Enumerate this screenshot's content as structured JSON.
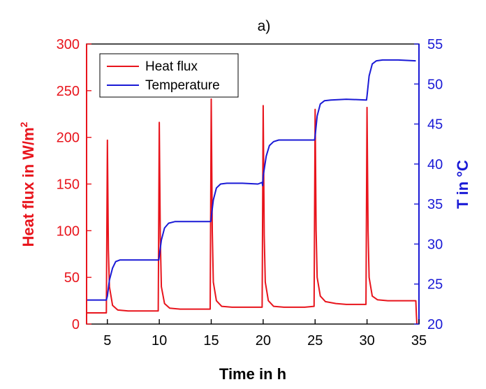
{
  "chart_data": {
    "type": "line",
    "title": "a)",
    "xlabel": "Time in h",
    "ylabel_left": "Heat flux in W/m",
    "ylabel_left_sup": "2",
    "ylabel_right": "T in °C",
    "xlim": [
      3,
      35
    ],
    "ylim_left": [
      0,
      300
    ],
    "ylim_right": [
      20,
      55
    ],
    "x_ticks": [
      5,
      10,
      15,
      20,
      25,
      30,
      35
    ],
    "y_left_ticks": [
      0,
      50,
      100,
      150,
      200,
      250,
      300
    ],
    "y_right_ticks": [
      20,
      25,
      30,
      35,
      40,
      45,
      50,
      55
    ],
    "legend_position": "top-left",
    "grid": false,
    "series": [
      {
        "name": "Heat flux",
        "axis": "left",
        "color": "#e8141c",
        "x": [
          3.0,
          4.9,
          5.0,
          5.1,
          5.2,
          5.5,
          6.0,
          7.0,
          8.0,
          9.0,
          9.9,
          10.0,
          10.1,
          10.2,
          10.5,
          11.0,
          12.0,
          13.0,
          14.0,
          14.9,
          15.0,
          15.1,
          15.2,
          15.5,
          16.0,
          17.0,
          18.0,
          19.0,
          19.9,
          20.0,
          20.1,
          20.2,
          20.5,
          21.0,
          22.0,
          23.0,
          24.0,
          24.9,
          25.0,
          25.1,
          25.2,
          25.5,
          26.0,
          27.0,
          28.0,
          29.0,
          29.9,
          30.0,
          30.1,
          30.2,
          30.5,
          31.0,
          32.0,
          33.0,
          34.0,
          34.7,
          34.75,
          34.8
        ],
        "y": [
          12,
          12,
          197,
          80,
          40,
          20,
          15,
          14,
          14,
          14,
          14,
          216,
          90,
          40,
          22,
          17,
          16,
          16,
          16,
          16,
          241,
          100,
          45,
          25,
          19,
          18,
          18,
          18,
          18,
          234,
          95,
          45,
          25,
          19,
          18,
          18,
          18,
          19,
          230,
          100,
          50,
          30,
          24,
          22,
          21,
          21,
          21,
          232,
          100,
          50,
          30,
          26,
          25,
          25,
          25,
          25,
          10,
          0
        ]
      },
      {
        "name": "Temperature",
        "axis": "right",
        "color": "#1a1ad6",
        "x": [
          3.0,
          4.9,
          5.0,
          5.2,
          5.5,
          5.8,
          6.2,
          7.0,
          8.0,
          9.0,
          9.95,
          10.0,
          10.2,
          10.5,
          10.9,
          11.5,
          12.5,
          14.0,
          14.95,
          15.0,
          15.2,
          15.5,
          15.9,
          16.5,
          18.0,
          19.5,
          19.9,
          19.95,
          20.0,
          20.3,
          20.6,
          21.0,
          21.5,
          23.0,
          24.95,
          25.0,
          25.2,
          25.5,
          25.9,
          26.5,
          28.0,
          29.95,
          30.0,
          30.2,
          30.5,
          30.9,
          31.5,
          33.0,
          34.7
        ],
        "y": [
          23.0,
          23.0,
          23.5,
          25.5,
          27.0,
          27.8,
          28.0,
          28.0,
          28.0,
          28.0,
          28.0,
          28.5,
          30.5,
          32.0,
          32.6,
          32.8,
          32.8,
          32.8,
          32.8,
          33.3,
          35.5,
          37.0,
          37.5,
          37.6,
          37.6,
          37.5,
          37.7,
          37.3,
          38.5,
          41.0,
          42.3,
          42.8,
          43.0,
          43.0,
          43.0,
          43.5,
          46.0,
          47.5,
          47.9,
          48.0,
          48.1,
          48.0,
          48.5,
          51.0,
          52.5,
          52.9,
          53.0,
          53.0,
          52.9
        ]
      }
    ]
  }
}
